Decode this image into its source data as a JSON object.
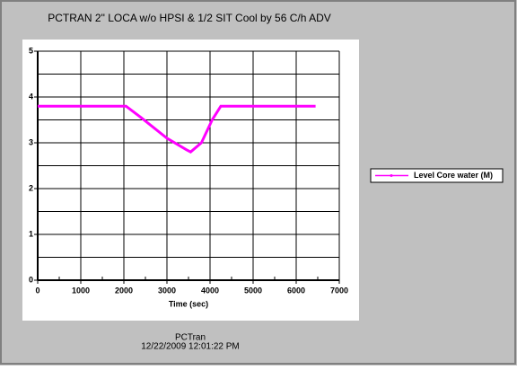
{
  "chart_data": {
    "type": "line",
    "title": "PCTRAN 2\" LOCA w/o HPSI & 1/2 SIT Cool by 56 C/h ADV",
    "x_label": "Time (sec)",
    "x": [
      0,
      2050,
      2400,
      3000,
      3450,
      3550,
      3800,
      4050,
      4250,
      6450
    ],
    "series": [
      {
        "name": "Level Core water (M)",
        "color": "#ff00ff",
        "values": [
          3.8,
          3.8,
          3.55,
          3.1,
          2.85,
          2.8,
          3.0,
          3.5,
          3.8,
          3.8
        ]
      }
    ],
    "xlim": [
      0,
      7000
    ],
    "xticks": [
      0,
      1000,
      2000,
      3000,
      4000,
      5000,
      6000,
      7000
    ],
    "xminorticks": [
      500,
      1500,
      2500,
      3500,
      4500,
      5500,
      6500
    ],
    "ylim": [
      0,
      5
    ],
    "yticks": [
      0,
      1,
      2,
      3,
      4,
      5
    ],
    "yminorticks": [
      0.5,
      1.5,
      2.5,
      3.5,
      4.5
    ],
    "grid": true,
    "legend": "right",
    "footer": {
      "app": "PCTran",
      "timestamp": "12/22/2009 12:01:22 PM"
    }
  }
}
